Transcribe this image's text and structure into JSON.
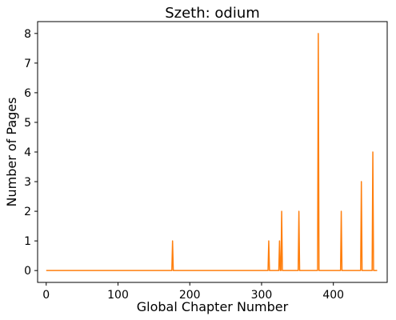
{
  "chart_data": {
    "type": "line",
    "title": "Szeth: odium",
    "xlabel": "Global Chapter Number",
    "ylabel": "Number of Pages",
    "xlim": [
      -12,
      475
    ],
    "ylim": [
      -0.4,
      8.4
    ],
    "x_ticks": [
      0,
      100,
      200,
      300,
      400
    ],
    "y_ticks": [
      0,
      1,
      2,
      3,
      4,
      5,
      6,
      7,
      8
    ],
    "grid": false,
    "series": [
      {
        "color": "#ff7f0e",
        "points": [
          [
            0,
            0
          ],
          [
            175,
            0
          ],
          [
            176,
            1
          ],
          [
            177,
            0
          ],
          [
            309,
            0
          ],
          [
            310,
            1
          ],
          [
            311,
            0
          ],
          [
            324,
            0
          ],
          [
            325,
            1
          ],
          [
            326,
            0
          ],
          [
            327,
            0
          ],
          [
            328,
            2
          ],
          [
            329,
            0
          ],
          [
            351,
            0
          ],
          [
            352,
            2
          ],
          [
            353,
            0
          ],
          [
            378,
            0
          ],
          [
            379,
            8
          ],
          [
            380,
            0
          ],
          [
            410,
            0
          ],
          [
            411,
            2
          ],
          [
            412,
            0
          ],
          [
            438,
            0
          ],
          [
            439,
            3
          ],
          [
            440,
            0
          ],
          [
            454,
            0
          ],
          [
            455,
            4
          ],
          [
            456,
            0
          ],
          [
            461,
            0
          ]
        ]
      }
    ]
  }
}
